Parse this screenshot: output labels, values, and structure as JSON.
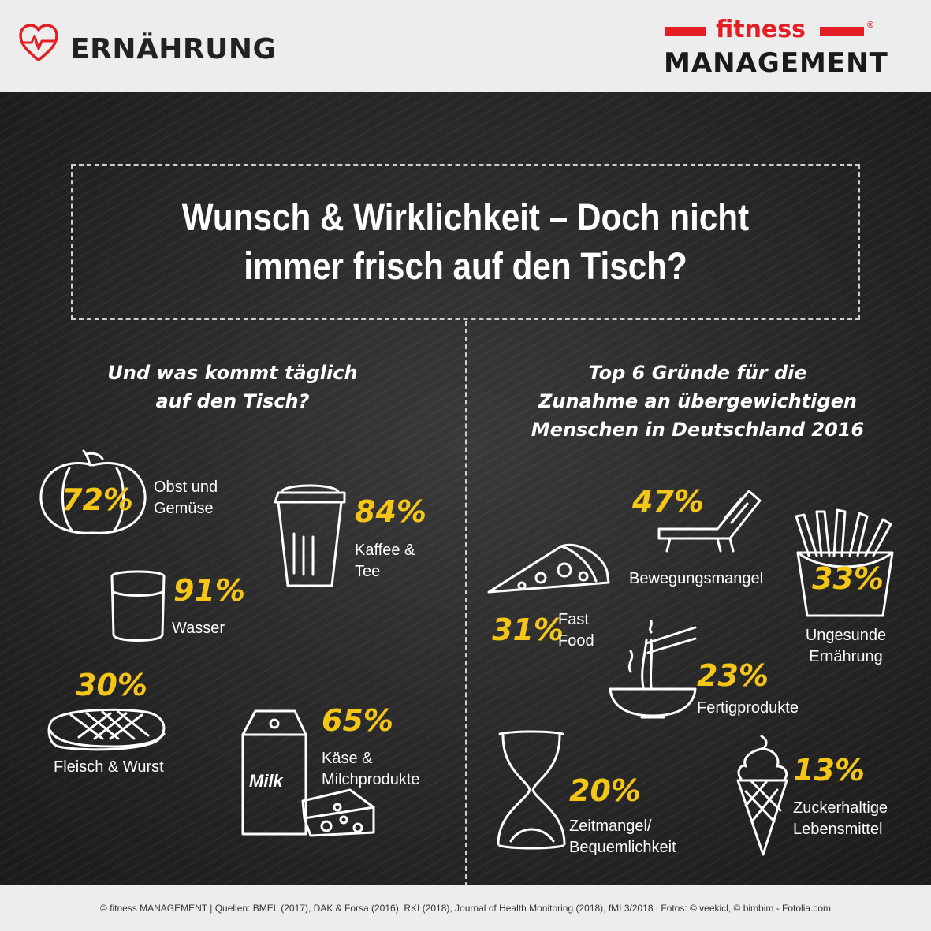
{
  "header": {
    "section": "ERNÄHRUNG",
    "brand_top": "fitness",
    "brand_bottom": "MANAGEMENT",
    "reg_mark": "®",
    "accent_color": "#e31e24",
    "icon": "heart-pulse-icon"
  },
  "title": {
    "line1": "Wunsch & Wirklichkeit – Doch nicht",
    "line2": "immer frisch auf den Tisch?"
  },
  "left": {
    "heading_line1": "Und was kommt täglich",
    "heading_line2": "auf den Tisch?",
    "items": [
      {
        "pct": "72%",
        "line1": "Obst und",
        "line2": "Gemüse",
        "icon": "pumpkin-icon"
      },
      {
        "pct": "84%",
        "line1": "Kaffee &",
        "line2": "Tee",
        "icon": "coffee-cup-icon"
      },
      {
        "pct": "91%",
        "line1": "Wasser",
        "line2": "",
        "icon": "water-glass-icon"
      },
      {
        "pct": "30%",
        "line1": "Fleisch & Wurst",
        "line2": "",
        "icon": "steak-icon"
      },
      {
        "pct": "65%",
        "line1": "Käse &",
        "line2": "Milchprodukte",
        "icon": "milk-cheese-icon"
      }
    ],
    "milk_text": "Milk"
  },
  "right": {
    "heading_line1": "Top 6 Gründe für die",
    "heading_line2": "Zunahme an übergewichtigen",
    "heading_line3": "Menschen in Deutschland 2016",
    "items": [
      {
        "pct": "47%",
        "line1": "Bewegungsmangel",
        "line2": "",
        "icon": "sun-lounger-icon"
      },
      {
        "pct": "31%",
        "line1": "Fast",
        "line2": "Food",
        "icon": "pizza-slice-icon"
      },
      {
        "pct": "33%",
        "line1": "Ungesunde",
        "line2": "Ernährung",
        "icon": "fries-icon"
      },
      {
        "pct": "23%",
        "line1": "Fertigprodukte",
        "line2": "",
        "icon": "noodle-bowl-icon"
      },
      {
        "pct": "20%",
        "line1": "Zeitmangel/",
        "line2": "Bequemlichkeit",
        "icon": "hourglass-icon"
      },
      {
        "pct": "13%",
        "line1": "Zuckerhaltige",
        "line2": "Lebensmittel",
        "icon": "ice-cream-icon"
      }
    ]
  },
  "footer": {
    "text": "© fitness MANAGEMENT  |  Quellen: BMEL (2017), DAK & Forsa (2016), RKI (2018), Journal of Health Monitoring (2018), fMI 3/2018  |  Fotos: © veekicl, © bimbim - Fotolia.com"
  },
  "colors": {
    "highlight": "#f5c518",
    "board": "#262626",
    "frame": "#ededed"
  }
}
